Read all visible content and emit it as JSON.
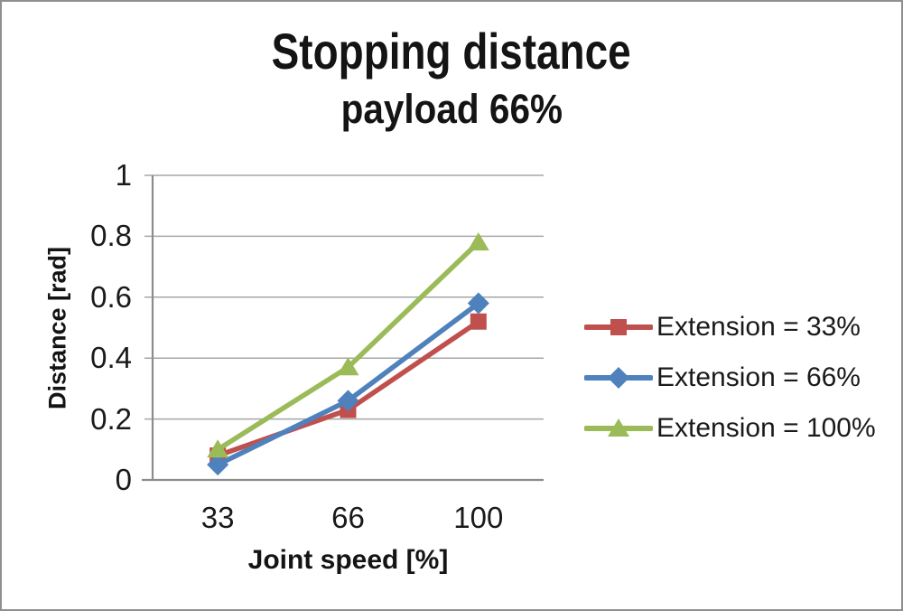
{
  "chart_data": {
    "type": "line",
    "title": "Stopping distance",
    "subtitle": "payload 66%",
    "xlabel": "Joint speed [%]",
    "ylabel": "Distance [rad]",
    "categories": [
      "33",
      "66",
      "100"
    ],
    "ylim": [
      0,
      1
    ],
    "ytick_values": [
      0,
      0.2,
      0.4,
      0.6,
      0.8,
      1
    ],
    "ytick_labels": [
      "0",
      "0.2",
      "0.4",
      "0.6",
      "0.8",
      "1"
    ],
    "grid": true,
    "legend_position": "right",
    "series": [
      {
        "name": "Extension = 33%",
        "color": "#c0504d",
        "marker": "square",
        "values": [
          0.08,
          0.23,
          0.52
        ]
      },
      {
        "name": "Extension = 66%",
        "color": "#4f81bd",
        "marker": "diamond",
        "values": [
          0.05,
          0.26,
          0.58
        ]
      },
      {
        "name": "Extension = 100%",
        "color": "#9bbb59",
        "marker": "triangle",
        "values": [
          0.1,
          0.37,
          0.78
        ]
      }
    ],
    "colors": {
      "axis": "#8c8c8c",
      "gridline": "#a6a6a6",
      "text": "#141414",
      "background": "#ffffff",
      "frame_border": "#8f8f8f"
    }
  }
}
